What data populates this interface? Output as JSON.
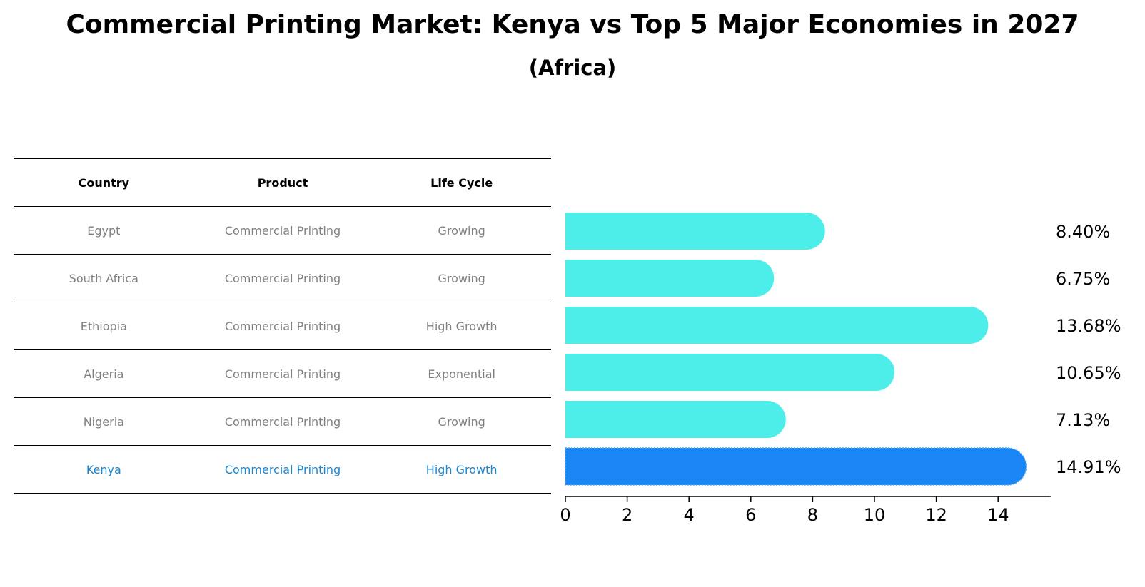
{
  "chart_data": {
    "type": "bar",
    "orientation": "horizontal",
    "title": "Commercial Printing Market: Kenya vs Top 5 Major Economies in 2027",
    "subtitle": "(Africa)",
    "table": {
      "columns": [
        "Country",
        "Product",
        "Life Cycle"
      ],
      "rows": [
        [
          "Egypt",
          "Commercial Printing",
          "Growing"
        ],
        [
          "South Africa",
          "Commercial Printing",
          "Growing"
        ],
        [
          "Ethiopia",
          "Commercial Printing",
          "High Growth"
        ],
        [
          "Algeria",
          "Commercial Printing",
          "Exponential"
        ],
        [
          "Nigeria",
          "Commercial Printing",
          "Growing"
        ],
        [
          "Kenya",
          "Commercial Printing",
          "High Growth"
        ]
      ],
      "highlight_row": 5
    },
    "categories": [
      "Egypt",
      "South Africa",
      "Ethiopia",
      "Algeria",
      "Nigeria",
      "Kenya"
    ],
    "values": [
      8.4,
      6.75,
      13.68,
      10.65,
      7.13,
      14.91
    ],
    "value_labels": [
      "8.40%",
      "6.75%",
      "13.68%",
      "10.65%",
      "7.13%",
      "14.91%"
    ],
    "xlim": [
      0,
      15.7
    ],
    "xticks": [
      0,
      2,
      4,
      6,
      8,
      10,
      12,
      14
    ],
    "colors": {
      "default": "#4deeea",
      "highlight": "#1a86f5"
    },
    "grid": false
  }
}
